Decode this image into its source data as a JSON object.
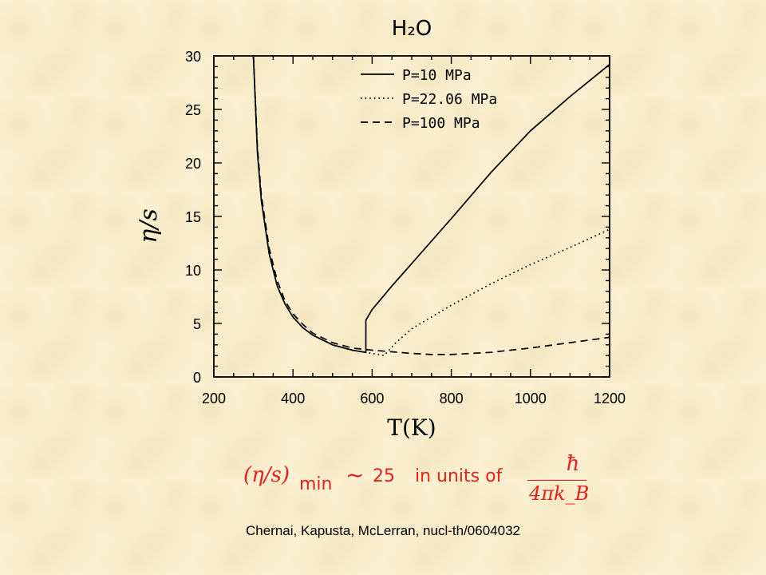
{
  "chart_data": {
    "type": "line",
    "title": "H₂O",
    "xlabel": "T(K)",
    "ylabel": "η/s",
    "xlim": [
      200,
      1200
    ],
    "ylim": [
      0,
      30
    ],
    "xticks": [
      200,
      400,
      600,
      800,
      1000,
      1200
    ],
    "yticks": [
      0,
      5,
      10,
      15,
      20,
      25,
      30
    ],
    "legend_position": "top-right",
    "series": [
      {
        "name": "P=10 MPa",
        "style": "solid",
        "x": [
          300,
          310,
          320,
          340,
          360,
          380,
          400,
          425,
          450,
          500,
          550,
          584,
          584,
          600,
          650,
          700,
          800,
          900,
          1000,
          1100,
          1200
        ],
        "y": [
          30,
          21,
          16.5,
          11.5,
          8.5,
          6.8,
          5.6,
          4.6,
          3.9,
          3.0,
          2.5,
          2.3,
          5.3,
          6.3,
          8.5,
          10.6,
          14.8,
          19.1,
          23.0,
          26.2,
          29.2
        ]
      },
      {
        "name": "P=22.06 MPa",
        "style": "dotted",
        "x": [
          300,
          310,
          320,
          340,
          360,
          380,
          400,
          425,
          450,
          500,
          550,
          600,
          630,
          660,
          700,
          800,
          900,
          1000,
          1100,
          1200
        ],
        "y": [
          30,
          21,
          16.5,
          11.5,
          8.5,
          6.8,
          5.6,
          4.6,
          3.9,
          3.0,
          2.5,
          2.2,
          2.0,
          3.2,
          4.5,
          6.7,
          8.7,
          10.5,
          12.1,
          13.8
        ]
      },
      {
        "name": "P=100 MPa",
        "style": "dashed",
        "x": [
          300,
          310,
          320,
          340,
          360,
          380,
          400,
          425,
          450,
          500,
          550,
          600,
          650,
          700,
          750,
          800,
          850,
          900,
          950,
          1000,
          1100,
          1200
        ],
        "y": [
          30,
          21.5,
          17,
          12,
          9,
          7.1,
          5.9,
          4.9,
          4.1,
          3.2,
          2.7,
          2.5,
          2.35,
          2.2,
          2.1,
          2.1,
          2.2,
          2.3,
          2.5,
          2.7,
          3.2,
          3.7
        ]
      }
    ]
  },
  "formula": {
    "paren": "(η/s)",
    "subscript": "min",
    "sim": "~",
    "value": "25",
    "units_text": "in units of",
    "numerator": "ħ",
    "denominator": "4πk_B"
  },
  "citation": "Chernai, Kapusta, McLerran, nucl-th/0604032",
  "colors": {
    "background": "#fbf1d2",
    "formula": "#e8201c",
    "lines": "#000000"
  }
}
